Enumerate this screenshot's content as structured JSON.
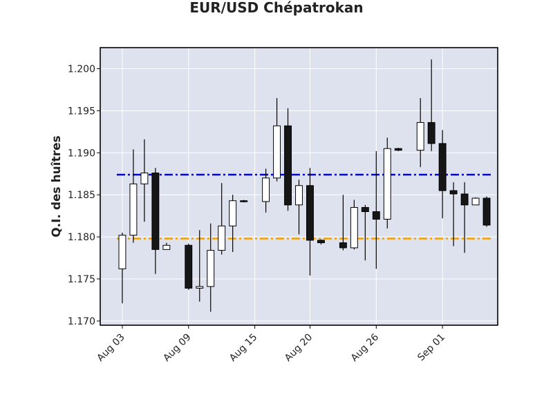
{
  "chart_data": {
    "type": "candlestick",
    "title": "EUR/USD Chépatrokan",
    "xlabel": "",
    "ylabel": "Q.I. des huîtres",
    "ylim": [
      1.1695,
      1.2025
    ],
    "yticks": [
      "1.170",
      "1.175",
      "1.180",
      "1.185",
      "1.190",
      "1.195",
      "1.200"
    ],
    "xlim": [
      "2021-08-01",
      "2021-09-06"
    ],
    "xticks": [
      {
        "date": "2021-08-03",
        "label": "Aug 03"
      },
      {
        "date": "2021-08-09",
        "label": "Aug 09"
      },
      {
        "date": "2021-08-15",
        "label": "Aug 15"
      },
      {
        "date": "2021-08-20",
        "label": "Aug 20"
      },
      {
        "date": "2021-08-26",
        "label": "Aug 26"
      },
      {
        "date": "2021-09-01",
        "label": "Sep 01"
      }
    ],
    "grid": true,
    "colors": {
      "background": "#dde2ee",
      "grid": "#ffffff",
      "up": "#ffffff",
      "down": "#161616",
      "edge": "#000000",
      "line_high": "#0000cc",
      "line_low": "#f0a000"
    },
    "hlines": [
      {
        "value": 1.1874,
        "color": "#0000cc",
        "style": "dash-dot"
      },
      {
        "value": 1.1798,
        "color": "#f0a000",
        "style": "dash-dot"
      }
    ],
    "candles": [
      {
        "date": "2021-08-03",
        "open": 1.1762,
        "high": 1.1805,
        "low": 1.1721,
        "close": 1.1802
      },
      {
        "date": "2021-08-04",
        "open": 1.1802,
        "high": 1.1904,
        "low": 1.1793,
        "close": 1.1863
      },
      {
        "date": "2021-08-05",
        "open": 1.1863,
        "high": 1.1916,
        "low": 1.1818,
        "close": 1.1876
      },
      {
        "date": "2021-08-06",
        "open": 1.1876,
        "high": 1.1882,
        "low": 1.1756,
        "close": 1.1785
      },
      {
        "date": "2021-08-07",
        "open": 1.1785,
        "high": 1.1793,
        "low": 1.1785,
        "close": 1.179
      },
      {
        "date": "2021-08-09",
        "open": 1.179,
        "high": 1.1792,
        "low": 1.1737,
        "close": 1.1739
      },
      {
        "date": "2021-08-10",
        "open": 1.1739,
        "high": 1.1808,
        "low": 1.1723,
        "close": 1.1741
      },
      {
        "date": "2021-08-11",
        "open": 1.1741,
        "high": 1.1816,
        "low": 1.1711,
        "close": 1.1784
      },
      {
        "date": "2021-08-12",
        "open": 1.1784,
        "high": 1.1864,
        "low": 1.1779,
        "close": 1.1813
      },
      {
        "date": "2021-08-13",
        "open": 1.1813,
        "high": 1.185,
        "low": 1.1782,
        "close": 1.1843
      },
      {
        "date": "2021-08-14",
        "open": 1.1843,
        "high": 1.1844,
        "low": 1.1841,
        "close": 1.1842
      },
      {
        "date": "2021-08-16",
        "open": 1.1842,
        "high": 1.1881,
        "low": 1.1829,
        "close": 1.187
      },
      {
        "date": "2021-08-17",
        "open": 1.187,
        "high": 1.1965,
        "low": 1.1866,
        "close": 1.1932
      },
      {
        "date": "2021-08-18",
        "open": 1.1932,
        "high": 1.1953,
        "low": 1.1831,
        "close": 1.1838
      },
      {
        "date": "2021-08-19",
        "open": 1.1838,
        "high": 1.1868,
        "low": 1.1803,
        "close": 1.1861
      },
      {
        "date": "2021-08-20",
        "open": 1.1861,
        "high": 1.1882,
        "low": 1.1754,
        "close": 1.1796
      },
      {
        "date": "2021-08-21",
        "open": 1.1796,
        "high": 1.1797,
        "low": 1.1791,
        "close": 1.1793
      },
      {
        "date": "2021-08-23",
        "open": 1.1793,
        "high": 1.185,
        "low": 1.1784,
        "close": 1.1787
      },
      {
        "date": "2021-08-24",
        "open": 1.1787,
        "high": 1.1844,
        "low": 1.1785,
        "close": 1.1835
      },
      {
        "date": "2021-08-25",
        "open": 1.1835,
        "high": 1.1838,
        "low": 1.1772,
        "close": 1.183
      },
      {
        "date": "2021-08-26",
        "open": 1.183,
        "high": 1.1902,
        "low": 1.1762,
        "close": 1.1821
      },
      {
        "date": "2021-08-27",
        "open": 1.1821,
        "high": 1.1918,
        "low": 1.181,
        "close": 1.1905
      },
      {
        "date": "2021-08-28",
        "open": 1.1905,
        "high": 1.1906,
        "low": 1.1902,
        "close": 1.1903
      },
      {
        "date": "2021-08-30",
        "open": 1.1903,
        "high": 1.1965,
        "low": 1.1883,
        "close": 1.1936
      },
      {
        "date": "2021-08-31",
        "open": 1.1936,
        "high": 1.2011,
        "low": 1.1902,
        "close": 1.1911
      },
      {
        "date": "2021-09-01",
        "open": 1.1911,
        "high": 1.1927,
        "low": 1.1822,
        "close": 1.1855
      },
      {
        "date": "2021-09-02",
        "open": 1.1855,
        "high": 1.1865,
        "low": 1.1789,
        "close": 1.1851
      },
      {
        "date": "2021-09-03",
        "open": 1.1851,
        "high": 1.1865,
        "low": 1.1781,
        "close": 1.1838
      },
      {
        "date": "2021-09-04",
        "open": 1.1838,
        "high": 1.1847,
        "low": 1.1838,
        "close": 1.1846
      },
      {
        "date": "2021-09-05",
        "open": 1.1846,
        "high": 1.1848,
        "low": 1.1812,
        "close": 1.1814
      }
    ]
  }
}
